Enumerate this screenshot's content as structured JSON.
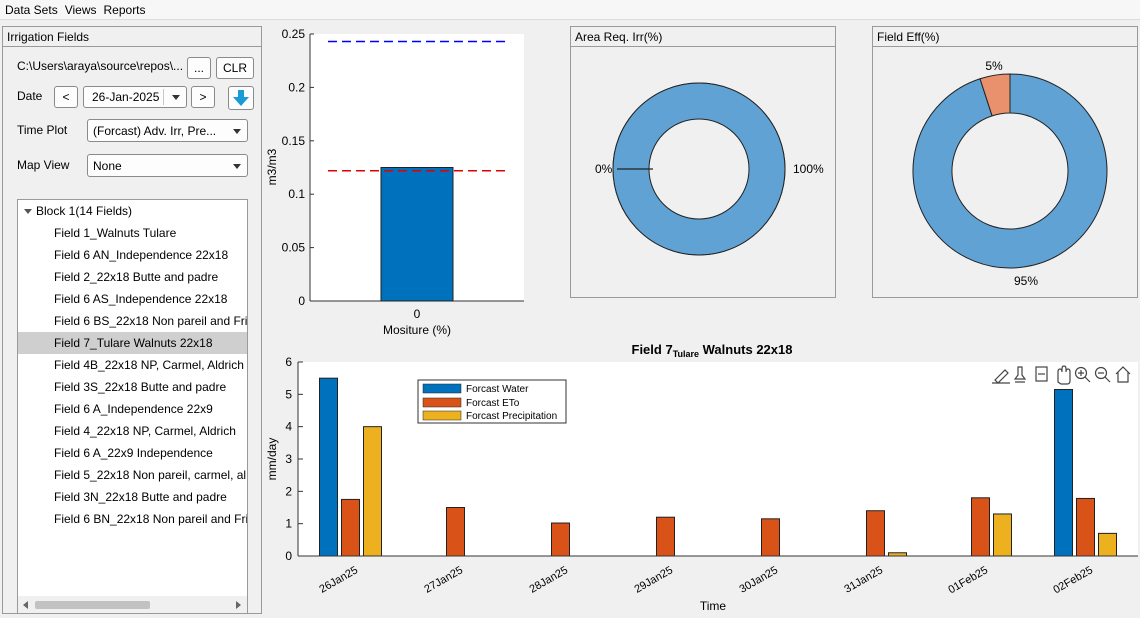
{
  "menu": [
    "Data Sets",
    "Views",
    "Reports"
  ],
  "left_panel": {
    "title": "Irrigation Fields",
    "path_value": "C:\\Users\\araya\\source\\repos\\...",
    "browse_label": "...",
    "clear_label": "CLR",
    "date_label": "Date",
    "prev_label": "<",
    "date_value": "26-Jan-2025",
    "next_label": ">",
    "time_plot_label": "Time Plot",
    "time_plot_value": "(Forcast) Adv. Irr, Pre...",
    "map_view_label": "Map View",
    "map_view_value": "None",
    "tree": {
      "block_label": "Block 1(14 Fields)",
      "selected_index": 5,
      "fields": [
        "Field 1_Walnuts Tulare",
        "Field 6 AN_Independence 22x18",
        "Field 2_22x18 Butte and padre",
        "Field 6 AS_Independence 22x18",
        "Field 6 BS_22x18 Non pareil and Fri",
        "Field 7_Tulare Walnuts 22x18",
        "Field 4B_22x18 NP, Carmel, Aldrich",
        "Field 3S_22x18 Butte and padre",
        "Field 6 A_Independence 22x9",
        "Field 4_22x18 NP, Carmel, Aldrich",
        "Field 6 A_22x9 Independence",
        "Field 5_22x18 Non pareil, carmel, al",
        "Field 3N_22x18 Butte and padre",
        "Field 6 BN_22x18 Non pareil and Fri"
      ]
    }
  },
  "moisture_chart": {
    "ylabel": "m3/m3",
    "xlabel": "Mositure (%)",
    "x_tick": "0",
    "y_ticks": [
      "0",
      "0.05",
      "0.1",
      "0.15",
      "0.2",
      "0.25"
    ],
    "bar_color": "#0072bd",
    "upper_line_color": "#0000ff",
    "lower_line_color": "#e00000"
  },
  "area_panel": {
    "title": "Area Req. Irr(%)",
    "left_label": "0%",
    "right_label": "100%"
  },
  "eff_panel": {
    "title": "Field Eff(%)",
    "top_label": "5%",
    "bottom_label": "95%"
  },
  "forecast_chart": {
    "title_main": "Field  7",
    "title_sub": "Tulare",
    "title_tail": " Walnuts  22x18",
    "xlabel": "Time",
    "ylabel": "mm/day",
    "y_ticks": [
      "0",
      "1",
      "2",
      "3",
      "4",
      "5",
      "6"
    ]
  },
  "colors": {
    "water": "#0072bd",
    "eto": "#d95319",
    "precip": "#edb120",
    "pie_blue": "#5fa2d3",
    "pie_orange": "#e8916c"
  },
  "chart_data": [
    {
      "type": "bar",
      "categories": [
        "0"
      ],
      "values": [
        0.125
      ],
      "xlabel": "Mositure (%)",
      "ylabel": "m3/m3",
      "ylim": [
        0,
        0.25
      ],
      "reference_lines": [
        0.243,
        0.122
      ]
    },
    {
      "type": "pie",
      "title": "Area Req. Irr(%)",
      "labels": [
        "0%",
        "100%"
      ],
      "values": [
        0,
        100
      ]
    },
    {
      "type": "pie",
      "title": "Field Eff(%)",
      "labels": [
        "5%",
        "95%"
      ],
      "values": [
        5,
        95
      ]
    },
    {
      "type": "bar",
      "xlabel": "Time",
      "ylabel": "mm/day",
      "ylim": [
        0,
        6
      ],
      "categories": [
        "26Jan25",
        "27Jan25",
        "28Jan25",
        "29Jan25",
        "30Jan25",
        "31Jan25",
        "01Feb25",
        "02Feb25"
      ],
      "series": [
        {
          "name": "Forcast Water",
          "values": [
            5.5,
            0,
            0,
            0,
            0,
            0,
            0,
            5.15
          ]
        },
        {
          "name": "Forcast ETo",
          "values": [
            1.75,
            1.5,
            1.02,
            1.2,
            1.15,
            1.4,
            1.8,
            1.78
          ]
        },
        {
          "name": "Forcast Precipitation",
          "values": [
            4.0,
            0,
            0,
            0,
            0,
            0.1,
            1.3,
            0.7
          ]
        }
      ],
      "legend": "top-left"
    }
  ]
}
